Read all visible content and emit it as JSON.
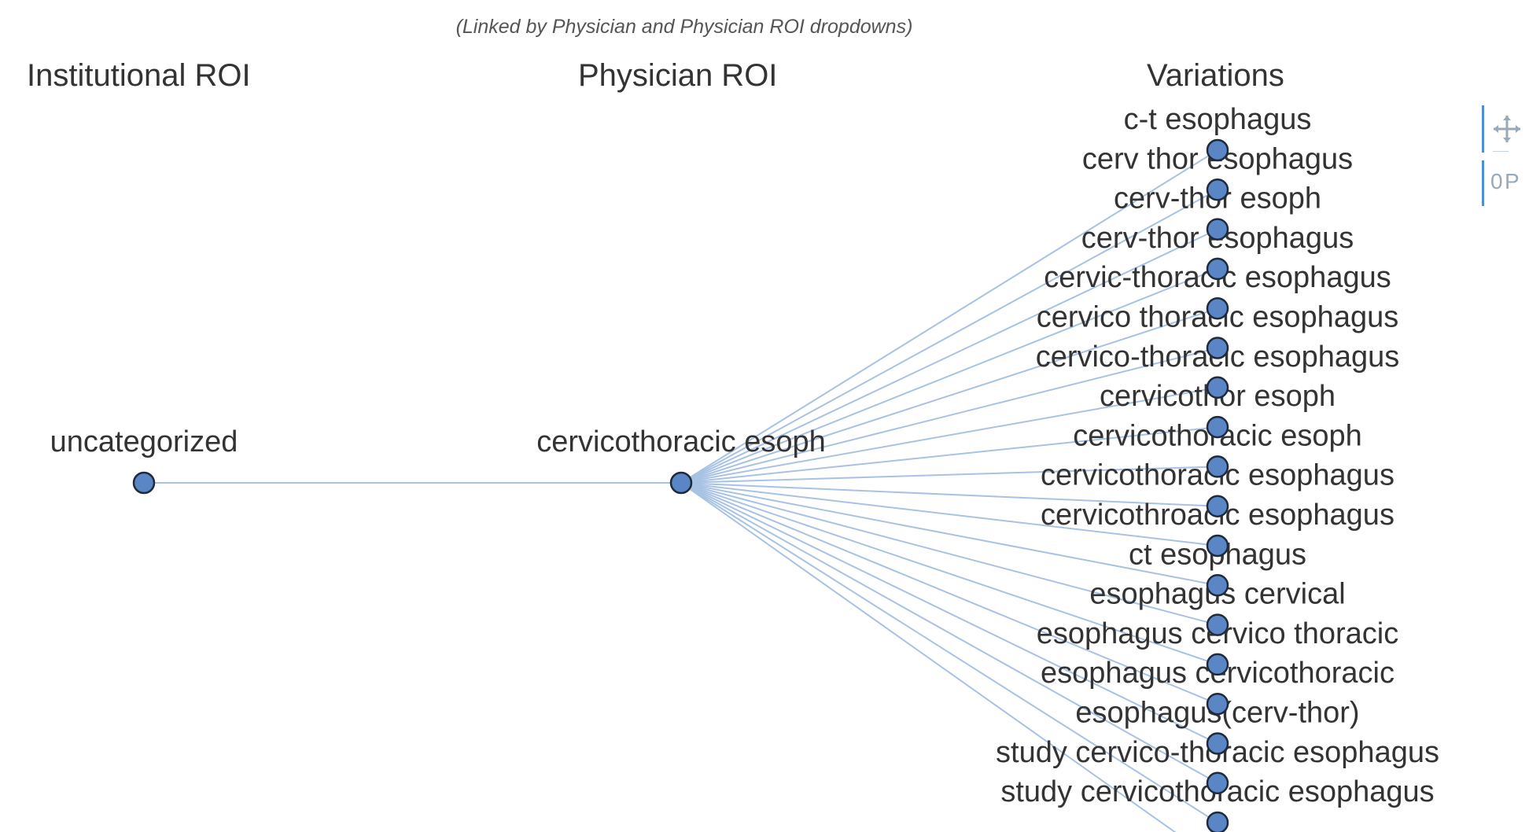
{
  "subtitle": "(Linked by Physician and Physician ROI dropdowns)",
  "headers": {
    "institutional": "Institutional ROI",
    "physician": "Physician ROI",
    "variations": "Variations"
  },
  "tree": {
    "institutional_roi": "uncategorized",
    "physician_roi": "cervicothoracic esoph",
    "variations": [
      "c-t esophagus",
      "cerv thor esophagus",
      "cerv-thor esoph",
      "cerv-thor esophagus",
      "cervic-thoracic esophagus",
      "cervico thoracic esophagus",
      "cervico-thoracic esophagus",
      "cervicothor esoph",
      "cervicothoracic esoph",
      "cervicothoracic esophagus",
      "cervicothroacic esophagus",
      "ct esophagus",
      "esophagus cervical",
      "esophagus cervico thoracic",
      "esophagus cervicothoracic",
      "esophagus(cerv-thor)",
      "study cervico-thoracic esophagus",
      "study cervicothoracic esophagus"
    ]
  },
  "colors": {
    "node_fill": "#5b86c5",
    "node_stroke": "#1f2a3a",
    "edge": "#a8c2e4",
    "text": "#333333",
    "subtitle": "#555555",
    "toolbar_accent": "#4a90d9",
    "toolbar_icon": "#9aa9b8"
  },
  "toolbar": {
    "icons": [
      "move-icon",
      "tap-select-icon"
    ]
  }
}
